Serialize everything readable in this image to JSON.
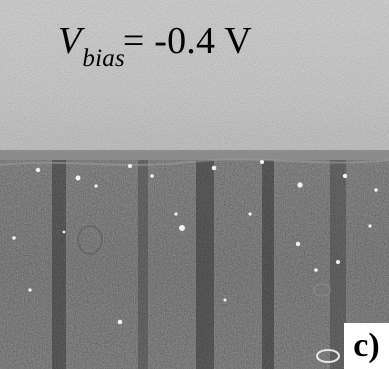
{
  "image": {
    "description_icon": "stm-micrograph-icon",
    "colors": {
      "top_region": "#c9c9c9",
      "bottom_region": "#1c1c1c",
      "bright_spots": "#f2f2f2",
      "text": "#000000",
      "label_background": "#ffffff"
    }
  },
  "caption": {
    "variable": "V",
    "subscript": "bias",
    "rest": "= -0.4 V"
  },
  "panel": {
    "label": "c)"
  }
}
